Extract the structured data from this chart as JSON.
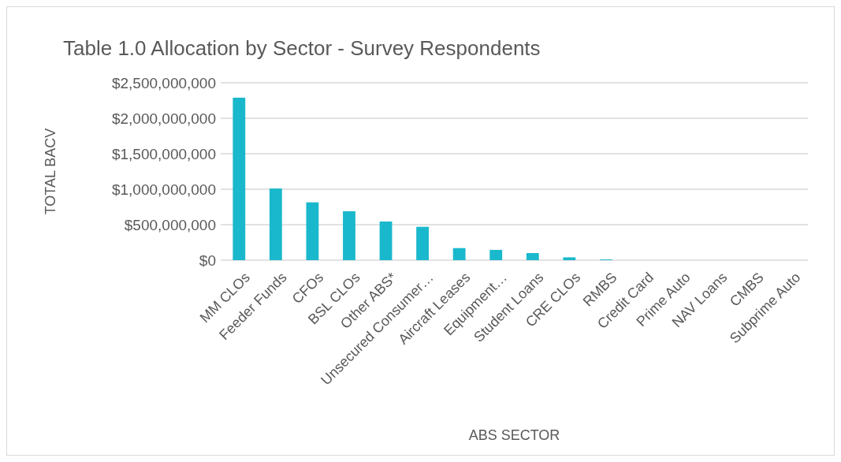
{
  "chart_data": {
    "type": "bar",
    "title": "Table 1.0 Allocation by Sector - Survey Respondents",
    "xlabel": "ABS SECTOR",
    "ylabel": "TOTAL BACV",
    "categories": [
      "MM CLOs",
      "Feeder Funds",
      "CFOs",
      "BSL CLOs",
      "Other ABS*",
      "Unsecured Consumer…",
      "Aircraft Leases",
      "Equipment…",
      "Student Loans",
      "CRE CLOs",
      "RMBS",
      "Credit Card",
      "Prime Auto",
      "NAV Loans",
      "CMBS",
      "Subprime Auto"
    ],
    "values": [
      2290000000,
      1010000000,
      815000000,
      690000000,
      545000000,
      470000000,
      170000000,
      145000000,
      100000000,
      40000000,
      10000000,
      0,
      0,
      0,
      0,
      0
    ],
    "color": "#1ab8cc",
    "ylim": [
      0,
      2500000000
    ],
    "yticks": [
      {
        "value": 0,
        "label": "$0"
      },
      {
        "value": 500000000,
        "label": "$500,000,000"
      },
      {
        "value": 1000000000,
        "label": "$1,000,000,000"
      },
      {
        "value": 1500000000,
        "label": "$1,500,000,000"
      },
      {
        "value": 2000000000,
        "label": "$2,000,000,000"
      },
      {
        "value": 2500000000,
        "label": "$2,500,000,000"
      }
    ],
    "grid": "y"
  }
}
